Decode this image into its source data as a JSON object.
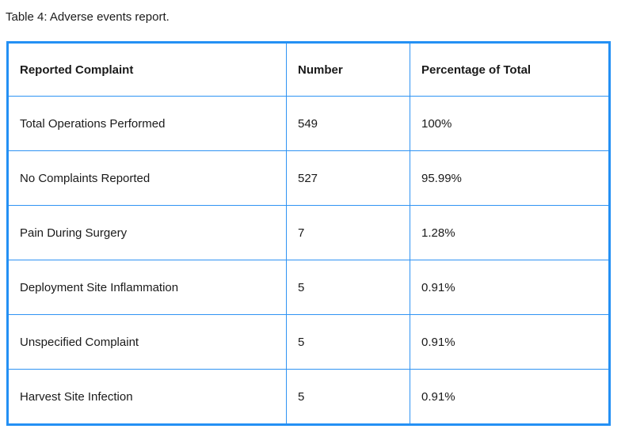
{
  "caption": "Table 4: Adverse events report.",
  "table": {
    "border_color": "#2490f4",
    "headers": [
      "Reported Complaint",
      "Number",
      "Percentage of Total"
    ],
    "rows": [
      [
        "Total Operations Performed",
        "549",
        "100%"
      ],
      [
        "No Complaints Reported",
        "527",
        "95.99%"
      ],
      [
        "Pain During Surgery",
        "7",
        "1.28%"
      ],
      [
        "Deployment Site Inflammation",
        "5",
        "0.91%"
      ],
      [
        "Unspecified Complaint",
        "5",
        "0.91%"
      ],
      [
        "Harvest Site Infection",
        "5",
        "0.91%"
      ]
    ]
  },
  "chart_data": {
    "type": "table",
    "title": "Table 4: Adverse events report.",
    "columns": [
      "Reported Complaint",
      "Number",
      "Percentage of Total"
    ],
    "records": [
      {
        "reported_complaint": "Total Operations Performed",
        "number": 549,
        "percentage_of_total": "100%"
      },
      {
        "reported_complaint": "No Complaints Reported",
        "number": 527,
        "percentage_of_total": "95.99%"
      },
      {
        "reported_complaint": "Pain During Surgery",
        "number": 7,
        "percentage_of_total": "1.28%"
      },
      {
        "reported_complaint": "Deployment Site Inflammation",
        "number": 5,
        "percentage_of_total": "0.91%"
      },
      {
        "reported_complaint": "Unspecified Complaint",
        "number": 5,
        "percentage_of_total": "0.91%"
      },
      {
        "reported_complaint": "Harvest Site Infection",
        "number": 5,
        "percentage_of_total": "0.91%"
      }
    ]
  }
}
